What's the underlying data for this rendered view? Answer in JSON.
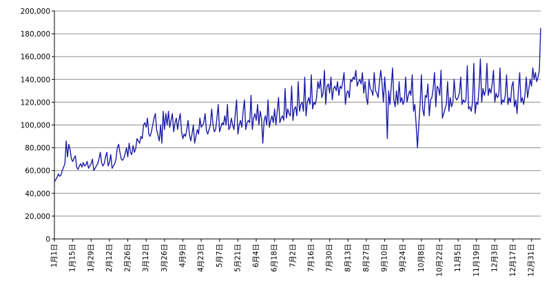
{
  "chart_data": {
    "type": "line",
    "title": "",
    "xlabel": "",
    "ylabel": "",
    "ylim": [
      0,
      200000
    ],
    "grid": "horizontal",
    "legend": "none",
    "series_color": "#1a1aa8",
    "grid_color": "#8c8c8c",
    "axis_color": "#000000",
    "y_ticks": [
      {
        "value": 0,
        "label": "0"
      },
      {
        "value": 20000,
        "label": "20,000"
      },
      {
        "value": 40000,
        "label": "40,000"
      },
      {
        "value": 60000,
        "label": "60,000"
      },
      {
        "value": 80000,
        "label": "80,000"
      },
      {
        "value": 100000,
        "label": "100,000"
      },
      {
        "value": 120000,
        "label": "120,000"
      },
      {
        "value": 140000,
        "label": "140,000"
      },
      {
        "value": 160000,
        "label": "160,000"
      },
      {
        "value": 180000,
        "label": "180,000"
      },
      {
        "value": 200000,
        "label": "200,000"
      }
    ],
    "x_ticks": [
      {
        "day": 0,
        "label": "1月1日"
      },
      {
        "day": 14,
        "label": "1月15日"
      },
      {
        "day": 28,
        "label": "1月29日"
      },
      {
        "day": 42,
        "label": "2月12日"
      },
      {
        "day": 56,
        "label": "2月26日"
      },
      {
        "day": 70,
        "label": "3月12日"
      },
      {
        "day": 84,
        "label": "3月26日"
      },
      {
        "day": 98,
        "label": "4月9日"
      },
      {
        "day": 112,
        "label": "4月23日"
      },
      {
        "day": 126,
        "label": "5月7日"
      },
      {
        "day": 140,
        "label": "5月21日"
      },
      {
        "day": 154,
        "label": "6月4日"
      },
      {
        "day": 168,
        "label": "6月18日"
      },
      {
        "day": 182,
        "label": "7月2日"
      },
      {
        "day": 196,
        "label": "7月16日"
      },
      {
        "day": 210,
        "label": "7月30日"
      },
      {
        "day": 224,
        "label": "8月13日"
      },
      {
        "day": 238,
        "label": "8月27日"
      },
      {
        "day": 252,
        "label": "9月10日"
      },
      {
        "day": 266,
        "label": "9月24日"
      },
      {
        "day": 280,
        "label": "10月8日"
      },
      {
        "day": 294,
        "label": "10月22日"
      },
      {
        "day": 308,
        "label": "11月5日"
      },
      {
        "day": 322,
        "label": "11月19日"
      },
      {
        "day": 336,
        "label": "12月3日"
      },
      {
        "day": 350,
        "label": "12月17日"
      },
      {
        "day": 364,
        "label": "12月31日"
      }
    ],
    "series": [
      {
        "values": [
          50000,
          52000,
          54000,
          57000,
          55000,
          56000,
          60000,
          63000,
          66000,
          86000,
          72000,
          83000,
          78000,
          70000,
          68000,
          71000,
          73000,
          63000,
          61000,
          64000,
          66000,
          63000,
          67000,
          64000,
          65000,
          68000,
          62000,
          64000,
          66000,
          70000,
          60000,
          62000,
          64000,
          66000,
          70000,
          76000,
          67000,
          64000,
          66000,
          72000,
          76000,
          64000,
          67000,
          74000,
          62000,
          64000,
          66000,
          70000,
          80000,
          83000,
          76000,
          70000,
          69000,
          71000,
          75000,
          80000,
          72000,
          84000,
          76000,
          74000,
          82000,
          76000,
          79000,
          88000,
          86000,
          84000,
          90000,
          88000,
          100000,
          102000,
          98000,
          106000,
          92000,
          90000,
          94000,
          100000,
          106000,
          110000,
          96000,
          91000,
          86000,
          100000,
          84000,
          112000,
          96000,
          110000,
          100000,
          112000,
          98000,
          104000,
          110000,
          94000,
          102000,
          106000,
          96000,
          104000,
          110000,
          94000,
          88000,
          92000,
          90000,
          96000,
          104000,
          92000,
          86000,
          92000,
          100000,
          84000,
          90000,
          96000,
          92000,
          106000,
          98000,
          100000,
          102000,
          110000,
          95000,
          92000,
          96000,
          100000,
          114000,
          100000,
          94000,
          96000,
          106000,
          118000,
          94000,
          98000,
          102000,
          100000,
          108000,
          100000,
          118000,
          96000,
          98000,
          106000,
          100000,
          96000,
          110000,
          122000,
          92000,
          100000,
          104000,
          98000,
          112000,
          122000,
          96000,
          102000,
          104000,
          102000,
          126000,
          96000,
          106000,
          110000,
          104000,
          118000,
          100000,
          112000,
          106000,
          84000,
          104000,
          108000,
          100000,
          122000,
          98000,
          104000,
          108000,
          102000,
          114000,
          100000,
          112000,
          124000,
          102000,
          106000,
          108000,
          104000,
          132000,
          106000,
          114000,
          110000,
          108000,
          134000,
          104000,
          114000,
          116000,
          108000,
          138000,
          112000,
          118000,
          120000,
          112000,
          142000,
          108000,
          120000,
          124000,
          118000,
          144000,
          114000,
          120000,
          118000,
          124000,
          138000,
          132000,
          140000,
          124000,
          128000,
          148000,
          118000,
          134000,
          136000,
          128000,
          142000,
          122000,
          132000,
          134000,
          130000,
          138000,
          126000,
          134000,
          132000,
          138000,
          146000,
          118000,
          128000,
          130000,
          124000,
          140000,
          138000,
          142000,
          140000,
          148000,
          134000,
          138000,
          140000,
          136000,
          146000,
          128000,
          138000,
          124000,
          118000,
          140000,
          132000,
          130000,
          126000,
          146000,
          130000,
          128000,
          124000,
          138000,
          148000,
          136000,
          120000,
          142000,
          126000,
          88000,
          130000,
          118000,
          134000,
          150000,
          122000,
          116000,
          130000,
          118000,
          138000,
          120000,
          124000,
          118000,
          122000,
          142000,
          120000,
          126000,
          130000,
          126000,
          144000,
          112000,
          118000,
          100000,
          80000,
          100000,
          118000,
          144000,
          114000,
          108000,
          126000,
          124000,
          136000,
          108000,
          122000,
          124000,
          132000,
          146000,
          116000,
          134000,
          132000,
          126000,
          148000,
          106000,
          110000,
          114000,
          118000,
          138000,
          112000,
          124000,
          116000,
          120000,
          140000,
          124000,
          122000,
          124000,
          128000,
          142000,
          118000,
          122000,
          120000,
          122000,
          152000,
          114000,
          116000,
          112000,
          120000,
          154000,
          110000,
          120000,
          118000,
          132000,
          158000,
          120000,
          132000,
          126000,
          130000,
          154000,
          126000,
          132000,
          128000,
          136000,
          148000,
          120000,
          128000,
          124000,
          126000,
          150000,
          118000,
          122000,
          120000,
          126000,
          144000,
          118000,
          124000,
          120000,
          134000,
          138000,
          116000,
          122000,
          110000,
          130000,
          146000,
          120000,
          124000,
          118000,
          126000,
          142000,
          124000,
          132000,
          140000,
          134000,
          150000,
          140000,
          146000,
          138000,
          142000,
          148000,
          185000
        ]
      }
    ]
  }
}
